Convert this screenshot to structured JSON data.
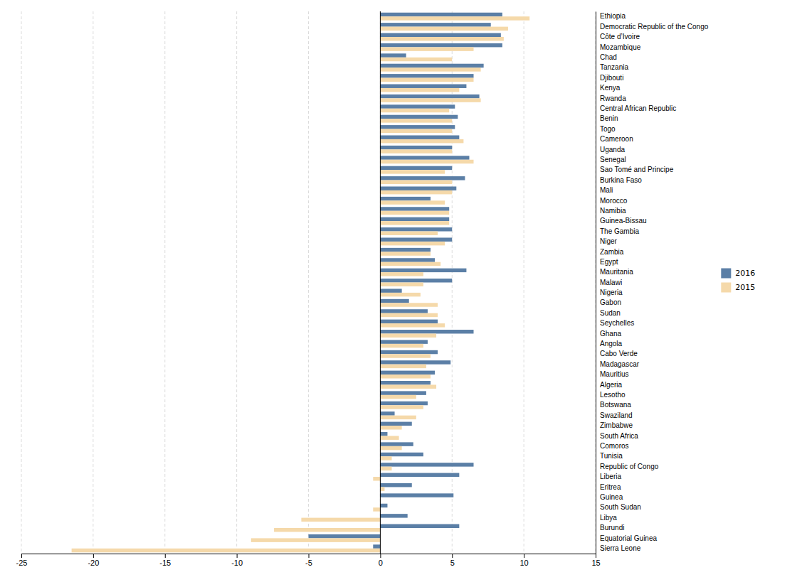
{
  "chart_data": {
    "type": "bar",
    "orientation": "horizontal",
    "categories": [
      "Ethiopia",
      "Democratic Republic of the Congo",
      "Côte d’Ivoire",
      "Mozambique",
      "Chad",
      "Tanzania",
      "Djibouti",
      "Kenya",
      "Rwanda",
      "Central African Republic",
      "Benin",
      "Togo",
      "Cameroon",
      "Uganda",
      "Senegal",
      "Sao Tomé and Principe",
      "Burkina Faso",
      "Mali",
      "Morocco",
      "Namibia",
      "Guinea-Bissau",
      "The Gambia",
      "Niger",
      "Zambia",
      "Egypt",
      "Mauritania",
      "Malawi",
      "Nigeria",
      "Gabon",
      "Sudan",
      "Seychelles",
      "Ghana",
      "Angola",
      "Cabo Verde",
      "Madagascar",
      "Mauritius",
      "Algeria",
      "Lesotho",
      "Botswana",
      "Swaziland",
      "Zimbabwe",
      "South Africa",
      "Comoros",
      "Tunisia",
      "Republic of Congo",
      "Liberia",
      "Eritrea",
      "Guinea",
      "South Sudan",
      "Libya",
      "Burundi",
      "Equatorial Guinea",
      "Sierra Leone"
    ],
    "series": [
      {
        "name": "2016",
        "color": "#5b7fa6",
        "values": [
          8.5,
          7.7,
          8.4,
          8.5,
          1.8,
          7.2,
          6.5,
          6.0,
          6.9,
          5.2,
          5.4,
          5.2,
          5.5,
          5.0,
          6.2,
          5.0,
          5.9,
          5.3,
          3.5,
          4.8,
          4.8,
          5.0,
          5.0,
          3.5,
          3.8,
          6.0,
          5.0,
          1.5,
          2.0,
          3.3,
          4.0,
          6.5,
          3.3,
          4.0,
          4.9,
          3.8,
          3.5,
          3.2,
          3.3,
          1.0,
          2.2,
          0.5,
          2.3,
          3.0,
          6.5,
          5.5,
          2.2,
          5.1,
          0.5,
          1.9,
          5.5,
          -5.0,
          -0.5
        ]
      },
      {
        "name": "2015",
        "color": "#f5d9aa",
        "values": [
          10.4,
          8.9,
          8.6,
          6.5,
          5.0,
          7.0,
          6.5,
          5.5,
          7.0,
          4.8,
          5.0,
          5.0,
          5.8,
          5.0,
          6.5,
          4.5,
          5.0,
          5.0,
          4.5,
          4.8,
          4.8,
          4.0,
          4.5,
          3.5,
          4.2,
          3.0,
          3.0,
          2.8,
          4.0,
          4.0,
          4.5,
          3.9,
          3.0,
          3.5,
          3.2,
          3.5,
          3.9,
          2.5,
          3.0,
          2.5,
          1.5,
          1.3,
          1.5,
          0.8,
          0.8,
          -0.5,
          0.3,
          0.0,
          -0.5,
          -5.5,
          -7.4,
          -9.0,
          -21.5
        ]
      }
    ],
    "xlim": [
      -25,
      15
    ],
    "xticks": [
      -25,
      -20,
      -15,
      -10,
      -5,
      0,
      5,
      10,
      15
    ],
    "grid": true,
    "legend": "right"
  }
}
